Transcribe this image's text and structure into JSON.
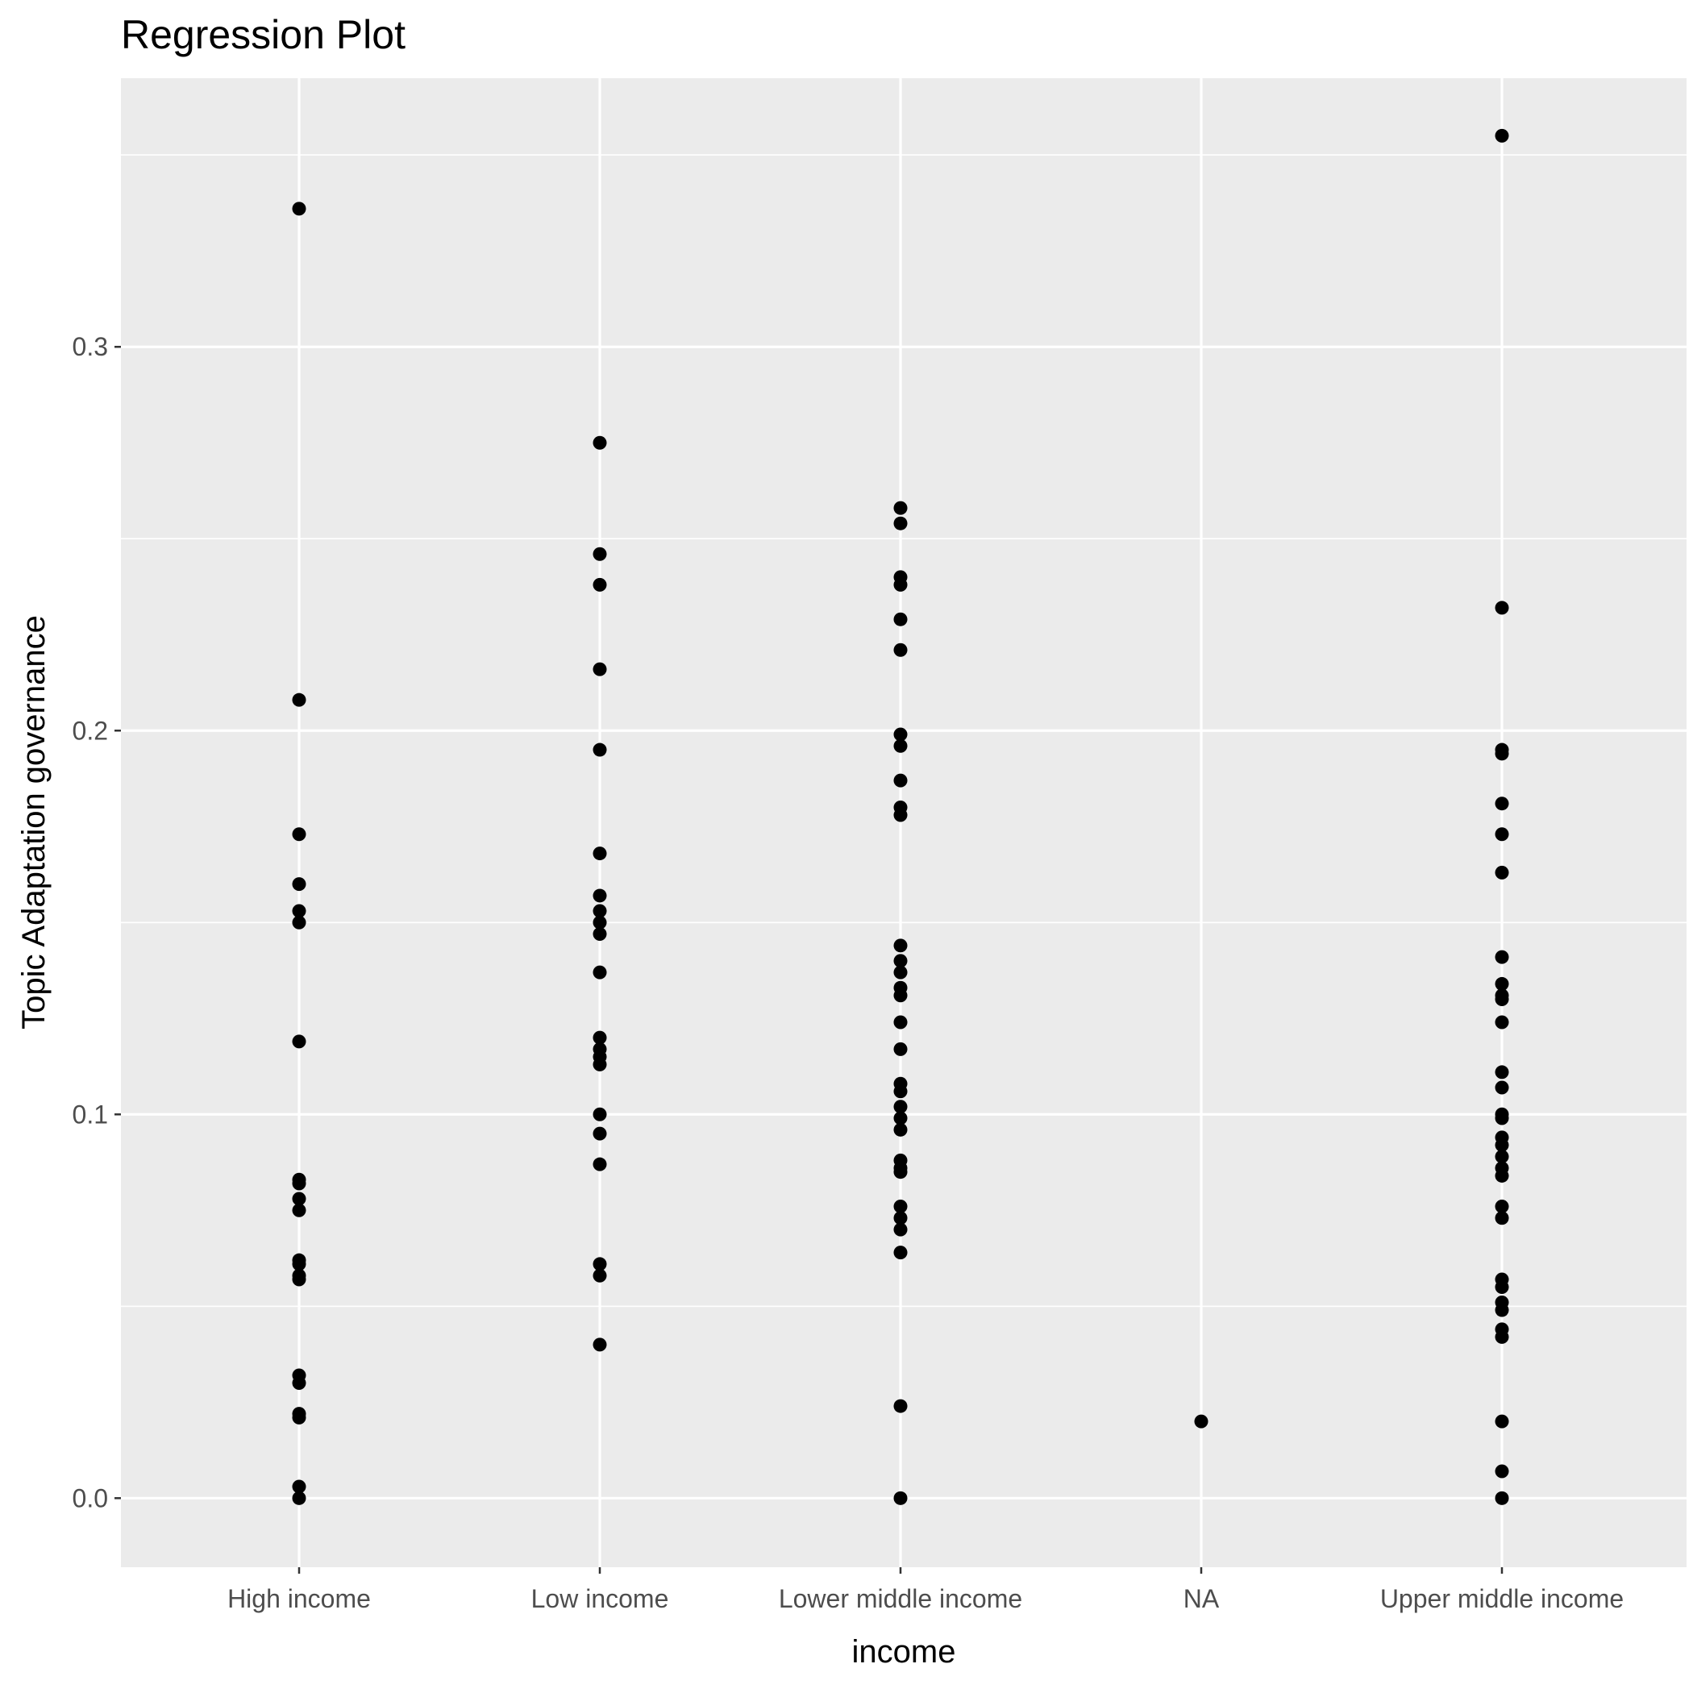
{
  "chart_data": {
    "type": "scatter",
    "title": "Regression Plot",
    "xlabel": "income",
    "ylabel": "Topic Adaptation governance",
    "categories": [
      "High income",
      "Low income",
      "Lower middle income",
      "NA",
      "Upper middle income"
    ],
    "ylim": [
      -0.018,
      0.37
    ],
    "yticks": [
      0.0,
      0.1,
      0.2,
      0.3
    ],
    "ytick_labels": [
      "0.0",
      "0.1",
      "0.2",
      "0.3"
    ],
    "grid": true,
    "colors": {
      "panel_background": "#ebebeb",
      "grid_line": "#ffffff",
      "point": "#000000",
      "tick_mark": "#333333",
      "tick_text": "#4d4d4d",
      "text": "#000000"
    },
    "series": [
      {
        "category": "High income",
        "values": [
          0.336,
          0.208,
          0.173,
          0.16,
          0.153,
          0.15,
          0.119,
          0.083,
          0.082,
          0.078,
          0.075,
          0.062,
          0.061,
          0.058,
          0.057,
          0.032,
          0.03,
          0.022,
          0.021,
          0.003,
          0.0
        ]
      },
      {
        "category": "Low income",
        "values": [
          0.275,
          0.246,
          0.238,
          0.216,
          0.195,
          0.168,
          0.157,
          0.153,
          0.15,
          0.147,
          0.137,
          0.12,
          0.117,
          0.115,
          0.113,
          0.1,
          0.095,
          0.087,
          0.061,
          0.058,
          0.04
        ]
      },
      {
        "category": "Lower middle income",
        "values": [
          0.258,
          0.254,
          0.24,
          0.238,
          0.229,
          0.221,
          0.199,
          0.196,
          0.187,
          0.18,
          0.178,
          0.144,
          0.14,
          0.137,
          0.133,
          0.131,
          0.124,
          0.117,
          0.108,
          0.106,
          0.102,
          0.099,
          0.096,
          0.088,
          0.086,
          0.085,
          0.076,
          0.073,
          0.07,
          0.064,
          0.024,
          0.0
        ]
      },
      {
        "category": "NA",
        "values": [
          0.02
        ]
      },
      {
        "category": "Upper middle income",
        "values": [
          0.355,
          0.232,
          0.195,
          0.194,
          0.181,
          0.173,
          0.163,
          0.141,
          0.134,
          0.131,
          0.13,
          0.124,
          0.111,
          0.107,
          0.1,
          0.099,
          0.094,
          0.092,
          0.089,
          0.086,
          0.084,
          0.076,
          0.073,
          0.057,
          0.055,
          0.051,
          0.049,
          0.044,
          0.042,
          0.02,
          0.007,
          0.0
        ]
      }
    ]
  }
}
